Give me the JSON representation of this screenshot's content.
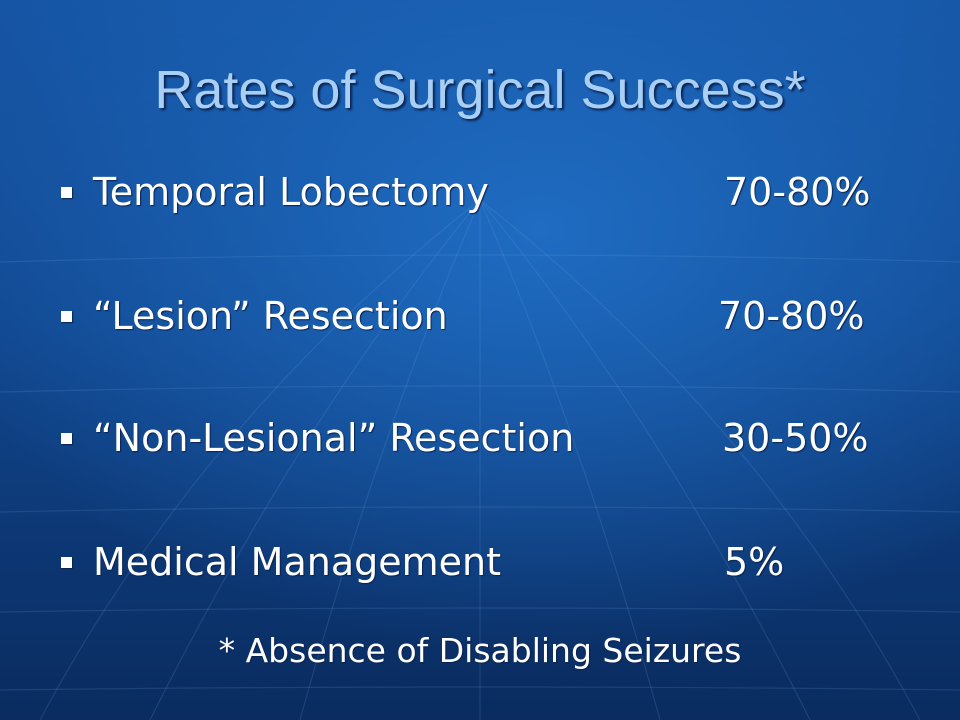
{
  "slide": {
    "title": "Rates of Surgical Success*",
    "items": [
      {
        "label": "Temporal Lobectomy",
        "value": "70-80%"
      },
      {
        "label": "“Lesion” Resection",
        "value": "70-80%"
      },
      {
        "label": "“Non-Lesional” Resection",
        "value": "30-50%"
      },
      {
        "label": "Medical Management",
        "value": "5%"
      }
    ],
    "footnote": "* Absence of Disabling Seizures"
  },
  "colors": {
    "background": "#1655a5",
    "title": "#a9cff5",
    "text": "#ffffff"
  },
  "icons": {
    "bullet": "square-bullet-icon"
  }
}
